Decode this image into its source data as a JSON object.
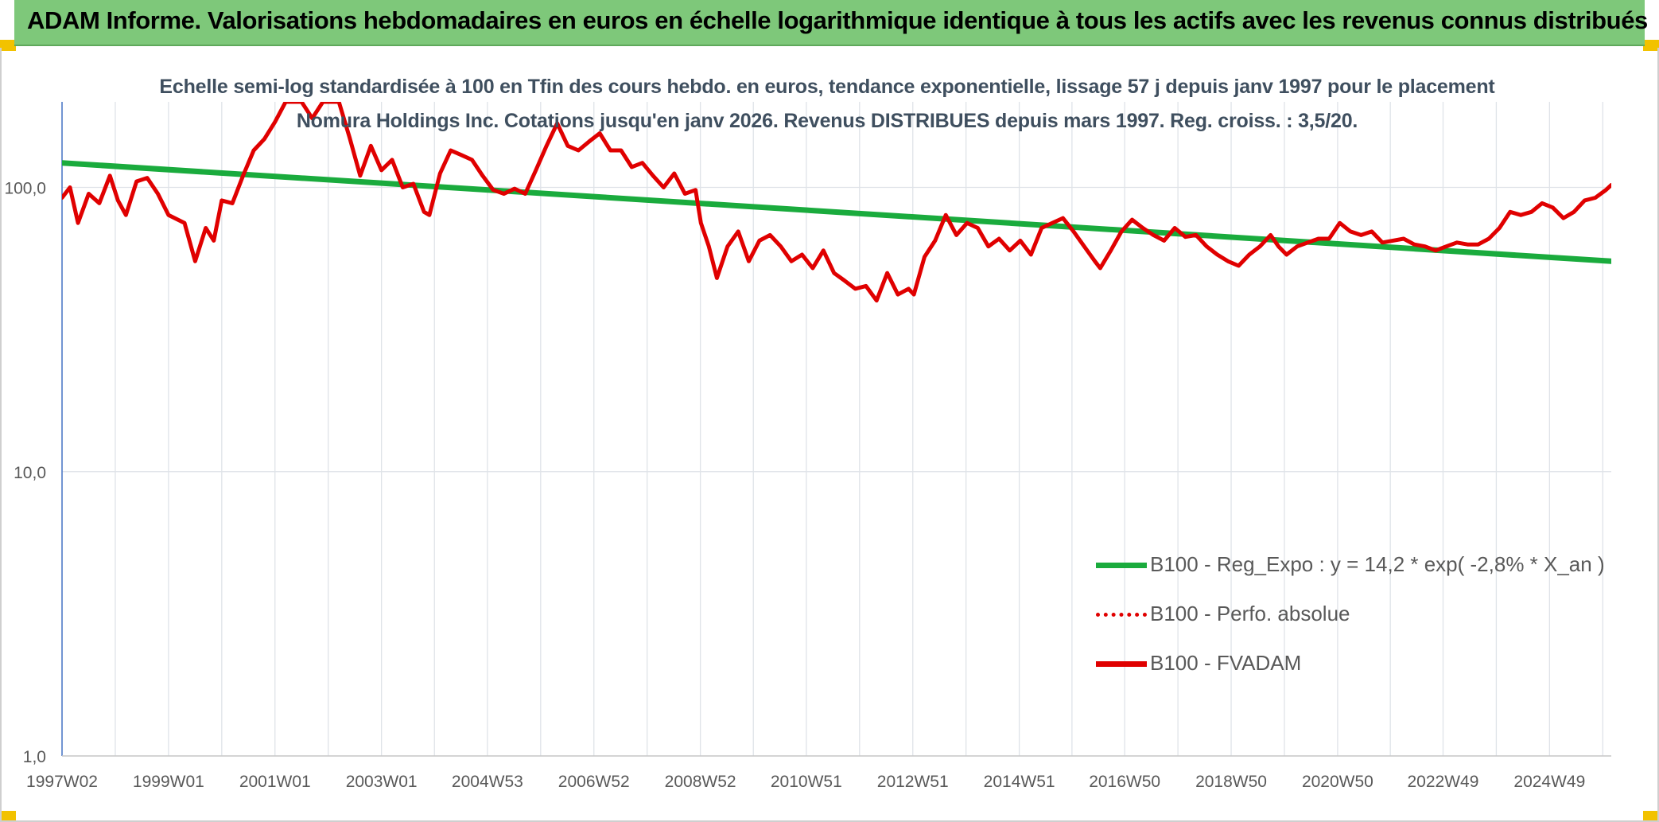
{
  "banner": {
    "title": "ADAM Informe. Valorisations hebdomadaires en euros en échelle logarithmique identique à tous les actifs avec les revenus connus distribués"
  },
  "chart_data": {
    "type": "line",
    "title": "Echelle semi-log standardisée à 100 en Tfin des cours hebdo. en euros, tendance exponentielle, lissage 57 j depuis janv 1997 pour le placement Nomura Holdings Inc. Cotations jusqu'en janv 2026. Revenus DISTRIBUES depuis mars 1997. Reg. croiss. : 3,5/20.",
    "y_scale": "log",
    "ylim": [
      1,
      200
    ],
    "y_ticks": [
      1,
      10,
      100
    ],
    "y_tick_labels": [
      "1,0",
      "10,0",
      "100,0"
    ],
    "xlim": [
      1997.0,
      2026.1
    ],
    "x_ticks": [
      1997.0,
      1999.0,
      2001.0,
      2003.0,
      2004.99,
      2006.99,
      2008.99,
      2010.98,
      2012.98,
      2014.98,
      2016.96,
      2018.96,
      2020.96,
      2022.94,
      2024.94
    ],
    "x_tick_labels": [
      "1997W02",
      "1999W01",
      "2001W01",
      "2003W01",
      "2004W53",
      "2006W52",
      "2008W52",
      "2010W51",
      "2012W51",
      "2014W51",
      "2016W50",
      "2018W50",
      "2020W50",
      "2022W49",
      "2024W49"
    ],
    "grid": "vertical",
    "legend_position": "bottom-right",
    "series": [
      {
        "name": "B100 - Reg_Expo : y = 14,2 * exp( -2,8% *  X_an )",
        "color": "#1aab3d",
        "style": "solid",
        "points": [
          [
            1997.0,
            122
          ],
          [
            2026.1,
            55
          ]
        ]
      },
      {
        "name": "B100 - Perfo. absolue",
        "color": "#e00000",
        "style": "dotted",
        "points": []
      },
      {
        "name": "B100 - FVADAM",
        "color": "#e00000",
        "style": "solid",
        "points": [
          [
            1997.0,
            92
          ],
          [
            1997.15,
            100
          ],
          [
            1997.3,
            75
          ],
          [
            1997.5,
            95
          ],
          [
            1997.7,
            88
          ],
          [
            1997.9,
            110
          ],
          [
            1998.05,
            90
          ],
          [
            1998.2,
            80
          ],
          [
            1998.4,
            105
          ],
          [
            1998.6,
            108
          ],
          [
            1998.8,
            95
          ],
          [
            1999.0,
            80
          ],
          [
            1999.3,
            75
          ],
          [
            1999.5,
            55
          ],
          [
            1999.7,
            72
          ],
          [
            1999.85,
            65
          ],
          [
            2000.0,
            90
          ],
          [
            2000.2,
            88
          ],
          [
            2000.4,
            110
          ],
          [
            2000.6,
            135
          ],
          [
            2000.8,
            148
          ],
          [
            2001.0,
            170
          ],
          [
            2001.2,
            200
          ],
          [
            2001.5,
            200
          ],
          [
            2001.7,
            175
          ],
          [
            2001.9,
            200
          ],
          [
            2002.2,
            200
          ],
          [
            2002.4,
            150
          ],
          [
            2002.6,
            110
          ],
          [
            2002.8,
            140
          ],
          [
            2003.0,
            115
          ],
          [
            2003.2,
            125
          ],
          [
            2003.4,
            100
          ],
          [
            2003.6,
            103
          ],
          [
            2003.8,
            82
          ],
          [
            2003.9,
            80
          ],
          [
            2004.1,
            112
          ],
          [
            2004.3,
            135
          ],
          [
            2004.5,
            130
          ],
          [
            2004.7,
            125
          ],
          [
            2004.9,
            110
          ],
          [
            2005.1,
            98
          ],
          [
            2005.3,
            95
          ],
          [
            2005.5,
            99
          ],
          [
            2005.7,
            95
          ],
          [
            2005.9,
            115
          ],
          [
            2006.1,
            140
          ],
          [
            2006.3,
            168
          ],
          [
            2006.5,
            140
          ],
          [
            2006.7,
            135
          ],
          [
            2006.9,
            145
          ],
          [
            2007.1,
            155
          ],
          [
            2007.3,
            135
          ],
          [
            2007.5,
            135
          ],
          [
            2007.7,
            118
          ],
          [
            2007.9,
            122
          ],
          [
            2008.1,
            110
          ],
          [
            2008.3,
            100
          ],
          [
            2008.5,
            112
          ],
          [
            2008.7,
            95
          ],
          [
            2008.9,
            98
          ],
          [
            2009.0,
            75
          ],
          [
            2009.15,
            62
          ],
          [
            2009.3,
            48
          ],
          [
            2009.5,
            62
          ],
          [
            2009.7,
            70
          ],
          [
            2009.9,
            55
          ],
          [
            2010.1,
            65
          ],
          [
            2010.3,
            68
          ],
          [
            2010.5,
            62
          ],
          [
            2010.7,
            55
          ],
          [
            2010.9,
            58
          ],
          [
            2011.1,
            52
          ],
          [
            2011.3,
            60
          ],
          [
            2011.5,
            50
          ],
          [
            2011.7,
            47
          ],
          [
            2011.9,
            44
          ],
          [
            2012.1,
            45
          ],
          [
            2012.3,
            40
          ],
          [
            2012.5,
            50
          ],
          [
            2012.7,
            42
          ],
          [
            2012.9,
            44
          ],
          [
            2013.0,
            42
          ],
          [
            2013.2,
            57
          ],
          [
            2013.4,
            65
          ],
          [
            2013.6,
            80
          ],
          [
            2013.8,
            68
          ],
          [
            2014.0,
            75
          ],
          [
            2014.2,
            72
          ],
          [
            2014.4,
            62
          ],
          [
            2014.6,
            66
          ],
          [
            2014.8,
            60
          ],
          [
            2015.0,
            65
          ],
          [
            2015.2,
            58
          ],
          [
            2015.4,
            72
          ],
          [
            2015.6,
            75
          ],
          [
            2015.8,
            78
          ],
          [
            2016.0,
            70
          ],
          [
            2016.2,
            62
          ],
          [
            2016.4,
            55
          ],
          [
            2016.5,
            52
          ],
          [
            2016.7,
            60
          ],
          [
            2016.9,
            70
          ],
          [
            2017.1,
            77
          ],
          [
            2017.3,
            72
          ],
          [
            2017.5,
            68
          ],
          [
            2017.7,
            65
          ],
          [
            2017.9,
            72
          ],
          [
            2018.1,
            67
          ],
          [
            2018.3,
            68
          ],
          [
            2018.5,
            62
          ],
          [
            2018.7,
            58
          ],
          [
            2018.9,
            55
          ],
          [
            2019.1,
            53
          ],
          [
            2019.3,
            58
          ],
          [
            2019.5,
            62
          ],
          [
            2019.7,
            68
          ],
          [
            2019.85,
            62
          ],
          [
            2020.0,
            58
          ],
          [
            2020.2,
            62
          ],
          [
            2020.4,
            64
          ],
          [
            2020.6,
            66
          ],
          [
            2020.8,
            66
          ],
          [
            2021.0,
            75
          ],
          [
            2021.2,
            70
          ],
          [
            2021.4,
            68
          ],
          [
            2021.6,
            70
          ],
          [
            2021.8,
            64
          ],
          [
            2022.0,
            65
          ],
          [
            2022.2,
            66
          ],
          [
            2022.4,
            63
          ],
          [
            2022.6,
            62
          ],
          [
            2022.8,
            60
          ],
          [
            2023.0,
            62
          ],
          [
            2023.2,
            64
          ],
          [
            2023.4,
            63
          ],
          [
            2023.6,
            63
          ],
          [
            2023.8,
            66
          ],
          [
            2024.0,
            72
          ],
          [
            2024.2,
            82
          ],
          [
            2024.4,
            80
          ],
          [
            2024.6,
            82
          ],
          [
            2024.8,
            88
          ],
          [
            2025.0,
            85
          ],
          [
            2025.2,
            78
          ],
          [
            2025.4,
            82
          ],
          [
            2025.6,
            90
          ],
          [
            2025.8,
            92
          ],
          [
            2026.0,
            98
          ],
          [
            2026.1,
            102
          ]
        ]
      }
    ]
  }
}
